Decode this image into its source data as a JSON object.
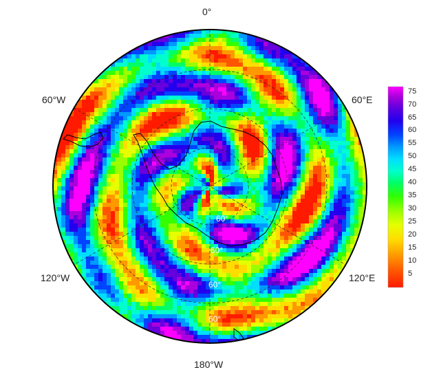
{
  "map": {
    "projection": "south-polar-stereographic",
    "longitude_labels": {
      "top": "0°",
      "upper_left": "60°W",
      "upper_right": "60°E",
      "lower_left": "120°W",
      "lower_right": "120°E",
      "bottom": "180°W"
    },
    "latitude_labels": [
      "60°",
      "60°",
      "60°",
      "60°"
    ],
    "graticule_color": "#222222",
    "coastline_color": "#000000"
  },
  "colorbar": {
    "ticks": [
      "75",
      "70",
      "65",
      "60",
      "55",
      "50",
      "45",
      "40",
      "35",
      "30",
      "25",
      "20",
      "15",
      "10",
      "5"
    ],
    "min": 0,
    "max": 77,
    "colors": [
      "#ff1a00",
      "#ff5500",
      "#ff9900",
      "#ffdd00",
      "#e6ff00",
      "#99ff00",
      "#33ff00",
      "#00ff66",
      "#00ffcc",
      "#00ddff",
      "#0099ff",
      "#0044ff",
      "#2200ee",
      "#6600dd",
      "#aa00dd",
      "#ff00ff"
    ]
  }
}
